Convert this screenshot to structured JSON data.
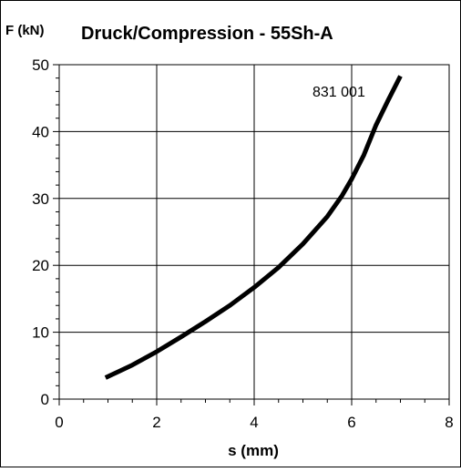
{
  "chart_data": {
    "type": "line",
    "title": "Druck/Compression - 55Sh-A",
    "xlabel": "s (mm)",
    "ylabel": "F (kN)",
    "xlim": [
      0,
      8
    ],
    "ylim": [
      0,
      50
    ],
    "xticks": [
      0,
      2,
      4,
      6,
      8
    ],
    "yticks": [
      0,
      10,
      20,
      30,
      40,
      50
    ],
    "x_minor_step": 0.5,
    "y_minor_step": 2,
    "grid": true,
    "legend": "none",
    "annotation": "831 001",
    "line_color": "#000000",
    "series": [
      {
        "x": [
          0.95,
          1.5,
          2.0,
          2.5,
          3.0,
          3.5,
          4.0,
          4.5,
          5.0,
          5.5,
          5.8,
          6.0,
          6.25,
          6.5,
          6.75,
          7.0
        ],
        "y": [
          3.2,
          5.1,
          7.1,
          9.3,
          11.6,
          14.0,
          16.7,
          19.7,
          23.2,
          27.3,
          30.4,
          32.9,
          36.5,
          41.0,
          44.7,
          48.3
        ]
      }
    ]
  }
}
